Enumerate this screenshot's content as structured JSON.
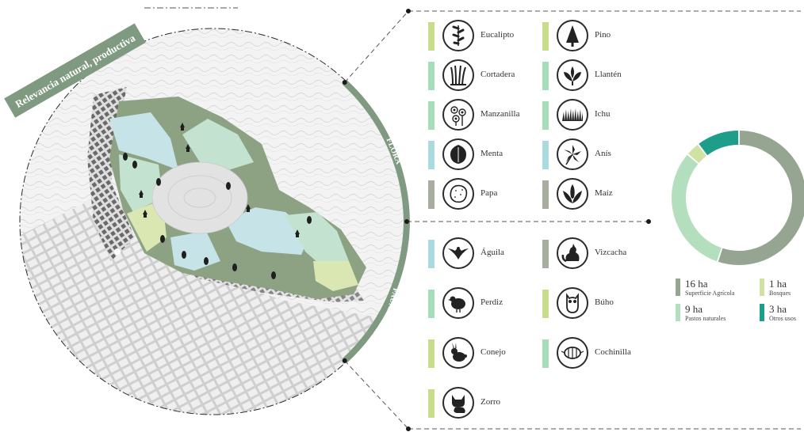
{
  "title": "Relevancia natural, productiva",
  "sections": {
    "flora": "FLORA",
    "fauna": "FAUNA"
  },
  "colors": {
    "dark_green": "#7f9a80",
    "sage": "#a7ad9f",
    "mint": "#a9dcb9",
    "light_blue": "#aad9de",
    "lime": "#c6dd8c",
    "teal": "#1d9d8a",
    "donut_agricola": "#96a592",
    "donut_pastos": "#b4dfbf",
    "donut_bosques": "#cfe2a3",
    "donut_otros": "#1d9d8a",
    "map_dark": "#8da283",
    "map_mint": "#c3e2cf",
    "map_blue": "#c6e3e8",
    "map_lime": "#dbe7b2"
  },
  "flora": [
    {
      "name": "Eucalipto",
      "icon": "eucalyptus-icon",
      "color": "#c6dd8c"
    },
    {
      "name": "Pino",
      "icon": "pine-icon",
      "color": "#c6dd8c"
    },
    {
      "name": "Cortadera",
      "icon": "pampas-grass-icon",
      "color": "#a9dcb9"
    },
    {
      "name": "Llantén",
      "icon": "plantain-icon",
      "color": "#a9dcb9"
    },
    {
      "name": "Manzanilla",
      "icon": "chamomile-icon",
      "color": "#a9dcb9"
    },
    {
      "name": "Ichu",
      "icon": "ichu-grass-icon",
      "color": "#a9dcb9"
    },
    {
      "name": "Menta",
      "icon": "mint-leaf-icon",
      "color": "#aad9de"
    },
    {
      "name": "Anís",
      "icon": "anise-icon",
      "color": "#aad9de"
    },
    {
      "name": "Papa",
      "icon": "potato-icon",
      "color": "#a7ad9f"
    },
    {
      "name": "Maíz",
      "icon": "corn-icon",
      "color": "#a7ad9f"
    }
  ],
  "fauna": [
    {
      "name": "Águila",
      "icon": "eagle-icon",
      "color": "#aad9de"
    },
    {
      "name": "Vizcacha",
      "icon": "vizcacha-icon",
      "color": "#a7ad9f"
    },
    {
      "name": "Perdiz",
      "icon": "partridge-icon",
      "color": "#a9dcb9"
    },
    {
      "name": "Búho",
      "icon": "owl-icon",
      "color": "#c6dd8c"
    },
    {
      "name": "Conejo",
      "icon": "rabbit-icon",
      "color": "#c6dd8c"
    },
    {
      "name": "Cochinilla",
      "icon": "cochineal-icon",
      "color": "#a9dcb9"
    },
    {
      "name": "Zorro",
      "icon": "fox-icon",
      "color": "#c6dd8c"
    }
  ],
  "land_use": [
    {
      "value": "16 ha",
      "label": "Superficie Agrícola",
      "color": "#96a592"
    },
    {
      "value": "1 ha",
      "label": "Bosques",
      "color": "#cfe2a3"
    },
    {
      "value": "9 ha",
      "label": "Pastos naturales",
      "color": "#b4dfbf"
    },
    {
      "value": "3 ha",
      "label": "Otros usos",
      "color": "#1d9d8a"
    }
  ],
  "chart_data": {
    "type": "pie",
    "donut": true,
    "categories": [
      "Superficie Agrícola",
      "Pastos naturales",
      "Bosques",
      "Otros usos"
    ],
    "values": [
      16,
      9,
      1,
      3
    ],
    "units": "ha"
  }
}
